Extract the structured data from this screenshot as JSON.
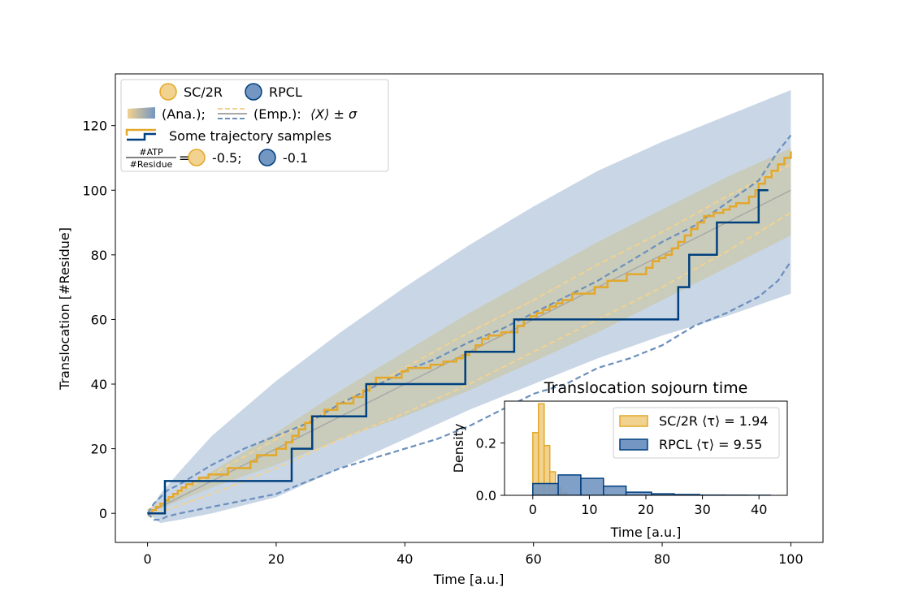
{
  "chart_data": [
    {
      "type": "line",
      "xlabel": "Time [a.u.]",
      "ylabel": "Translocation [#Residue]",
      "xlim": [
        -5,
        105
      ],
      "ylim": [
        -9,
        136
      ],
      "x_ticks": [
        0,
        20,
        40,
        60,
        80,
        100
      ],
      "y_ticks": [
        0,
        20,
        40,
        60,
        80,
        100,
        120
      ],
      "x_tick_labels": [
        "0",
        "20",
        "40",
        "60",
        "80",
        "100"
      ],
      "y_tick_labels": [
        "0",
        "20",
        "40",
        "60",
        "80",
        "100",
        "120"
      ],
      "grid": false,
      "legend_position": "top-left",
      "colors": {
        "sc2r": "#e3a82b",
        "sc2r_fill": "#f2d28f",
        "sc2r_band": "#c8c496",
        "rpcl": "#00407f",
        "rpcl_dash": "#6b8fbd",
        "rpcl_band": "#c9d6e6",
        "mean": "#a8a8a8"
      },
      "legend": {
        "row1": [
          "SC/2R",
          "RPCL"
        ],
        "row2_a": "(Ana.);",
        "row2_b": "(Emp.):",
        "row2_c": "⟨X⟩ ± σ",
        "row3": "Some trajectory samples",
        "row4_num": "#ATP",
        "row4_den": "#Residue",
        "row4_eq": "=",
        "row4_sc": "-0.5;",
        "row4_rp": "-0.1"
      },
      "series": [
        {
          "name": "RPCL",
          "kind": "analytic band",
          "x": [
            0,
            2,
            5,
            10,
            20,
            30,
            40,
            50,
            60,
            70,
            80,
            90,
            100
          ],
          "upper": [
            0,
            6,
            13,
            24,
            41,
            56,
            70,
            83,
            95,
            106,
            115,
            123,
            131
          ],
          "lower": [
            0,
            -3,
            -2,
            0,
            5,
            14,
            23,
            32,
            40,
            48,
            55,
            61,
            68
          ]
        },
        {
          "name": "SC/2R",
          "kind": "analytic band",
          "x": [
            0,
            10,
            20,
            30,
            40,
            50,
            60,
            70,
            80,
            90,
            100
          ],
          "upper": [
            0,
            13,
            25,
            38,
            50,
            62,
            73,
            84,
            94,
            104,
            113
          ],
          "lower": [
            0,
            8,
            15,
            23,
            30,
            38,
            47,
            56,
            66,
            76,
            86
          ]
        },
        {
          "name": "SC/2R",
          "kind": "mean",
          "x": [
            0,
            100
          ],
          "y": [
            0,
            100
          ]
        },
        {
          "name": "SC/2R",
          "kind": "empirical ±σ",
          "x": [
            0,
            10,
            20,
            30,
            40,
            50,
            60,
            70,
            80,
            90,
            100
          ],
          "upper": [
            1,
            12,
            23,
            34,
            45,
            56,
            66,
            77,
            87,
            98,
            108
          ],
          "lower": [
            -1,
            6,
            14,
            23,
            31,
            40,
            50,
            60,
            70,
            81,
            93
          ]
        },
        {
          "name": "RPCL",
          "kind": "empirical ±σ",
          "x": [
            0,
            1,
            2,
            3,
            5,
            10,
            15,
            20,
            25,
            30,
            40,
            45,
            50,
            55,
            60,
            65,
            70,
            75,
            80,
            85,
            90,
            95,
            98,
            100
          ],
          "upper": [
            0,
            3,
            5,
            7,
            9,
            15,
            20,
            24,
            28,
            34,
            44,
            48,
            53,
            57,
            62,
            67,
            72,
            78,
            84,
            89,
            96,
            103,
            112,
            117
          ],
          "lower": [
            0,
            -2,
            -2,
            -1,
            0,
            2,
            4,
            6,
            10,
            14,
            20,
            23,
            27,
            32,
            37,
            40,
            45,
            48,
            52,
            58,
            62,
            67,
            72,
            78
          ]
        },
        {
          "name": "SC/2R",
          "kind": "trajectory sample",
          "x": [
            0,
            0.7,
            1.3,
            2.0,
            2.7,
            3.3,
            4.0,
            4.7,
            5.3,
            6.0,
            7.0,
            8.0,
            9.5,
            12.5,
            16.0,
            17.0,
            20.0,
            21.5,
            22.5,
            23.5,
            24.5,
            25.5,
            27.5,
            29.5,
            32.0,
            33.5,
            34.5,
            35.5,
            39.5,
            40.5,
            44.0,
            46.0,
            48.0,
            49.0,
            50.0,
            51.0,
            52.0,
            53.0,
            55.0,
            57.5,
            58.5,
            59.5,
            60.5,
            61.5,
            62.5,
            63.5,
            64.5,
            66.0,
            69.5,
            71.5,
            74.5,
            77.5,
            78.5,
            79.5,
            80.5,
            81.5,
            82.5,
            83.5,
            84.5,
            85.5,
            86.5,
            88.0,
            89.5,
            90.5,
            91.5,
            93.5,
            94.5,
            95.0,
            96.0,
            97.0,
            98.0,
            99.0,
            100.0
          ],
          "y": [
            0,
            1,
            2,
            3,
            4,
            5,
            6,
            7,
            8,
            9,
            10,
            11,
            12,
            14,
            16,
            18,
            20,
            22,
            24,
            26,
            28,
            30,
            32,
            34,
            36,
            38,
            40,
            42,
            44,
            45,
            46,
            47,
            48,
            49,
            50,
            52,
            54,
            55,
            56,
            58,
            60,
            61,
            62,
            63,
            64,
            65,
            66,
            68,
            70,
            72,
            74,
            76,
            78,
            79,
            80,
            82,
            84,
            86,
            88,
            90,
            92,
            93,
            94,
            95,
            96,
            98,
            100,
            102,
            104,
            106,
            108,
            110,
            112
          ]
        },
        {
          "name": "RPCL",
          "kind": "trajectory sample",
          "x": [
            0,
            2.7,
            22.4,
            25.6,
            34.0,
            49.4,
            57.0,
            82.5,
            84.2,
            88.5,
            95.0,
            96.5
          ],
          "y": [
            0,
            10,
            20,
            30,
            40,
            50,
            60,
            70,
            80,
            90,
            100,
            100
          ]
        }
      ]
    },
    {
      "type": "bar",
      "title": "Translocation sojourn time",
      "xlabel": "Time [a.u.]",
      "ylabel": "Density",
      "xlim": [
        -5,
        45
      ],
      "ylim": [
        0,
        0.36
      ],
      "x_ticks": [
        0,
        10,
        20,
        30,
        40
      ],
      "y_ticks": [
        0.0,
        0.2
      ],
      "x_tick_labels": [
        "0",
        "10",
        "20",
        "30",
        "40"
      ],
      "y_tick_labels": [
        "0.0",
        "0.2"
      ],
      "legend_position": "upper-right",
      "legend_labels": [
        "SC/2R ⟨τ⟩ = 1.94",
        "RPCL ⟨τ⟩ = 9.55"
      ],
      "series": [
        {
          "name": "SC/2R",
          "bin_edges": [
            0,
            1,
            2,
            3,
            4,
            5,
            6
          ],
          "values": [
            0.24,
            0.35,
            0.19,
            0.09,
            0.03,
            0.01
          ]
        },
        {
          "name": "RPCL",
          "bin_edges": [
            0,
            4.5,
            8.5,
            12.5,
            16.5,
            21,
            25,
            29.5,
            34,
            38,
            42
          ],
          "values": [
            0.045,
            0.078,
            0.065,
            0.035,
            0.012,
            0.006,
            0.003,
            0.001,
            0.0005,
            0.0003
          ]
        }
      ]
    }
  ]
}
